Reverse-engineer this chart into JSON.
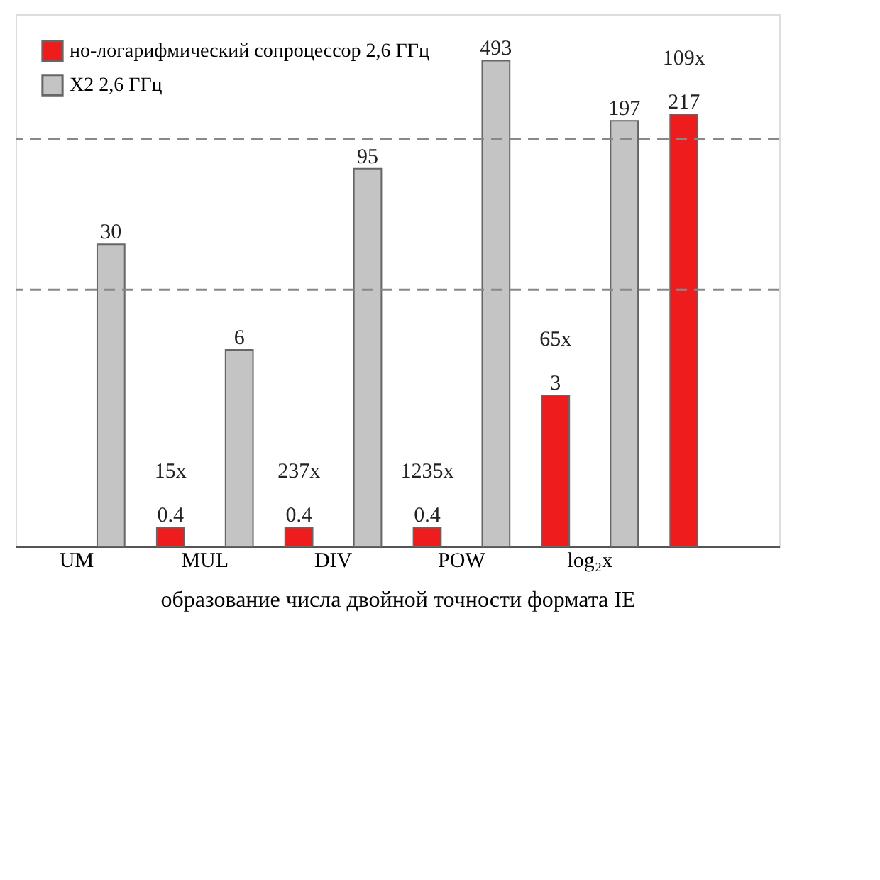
{
  "chart_data": {
    "type": "bar",
    "xlabel": "образование числа двойной точности формата IE",
    "categories": [
      "UM",
      "MUL",
      "DIV",
      "POW",
      "log₂x",
      null
    ],
    "series": [
      {
        "name": "но-логарифмический сопроцессор 2,6 ГГц",
        "color": "#ee1c1c",
        "values": [
          null,
          0.4,
          0.4,
          0.4,
          3,
          217
        ]
      },
      {
        "name": "X2 2,6 ГГц",
        "color": "#c4c4c4",
        "values": [
          30,
          6,
          95,
          493,
          197,
          null
        ]
      }
    ],
    "log": "y",
    "ylim": [
      0.3,
      1000
    ],
    "ref_lines": [
      {
        "axis": "y",
        "value": 15,
        "color": "#888888",
        "line_style": "dashed"
      },
      {
        "axis": "y",
        "value": 150,
        "color": "#888888",
        "line_style": "dashed"
      }
    ],
    "tick_labels": "x",
    "data_labels": true,
    "legend": "top left",
    "annotations": [
      "15x",
      "237x",
      "1235x",
      "65x",
      "109x"
    ]
  }
}
